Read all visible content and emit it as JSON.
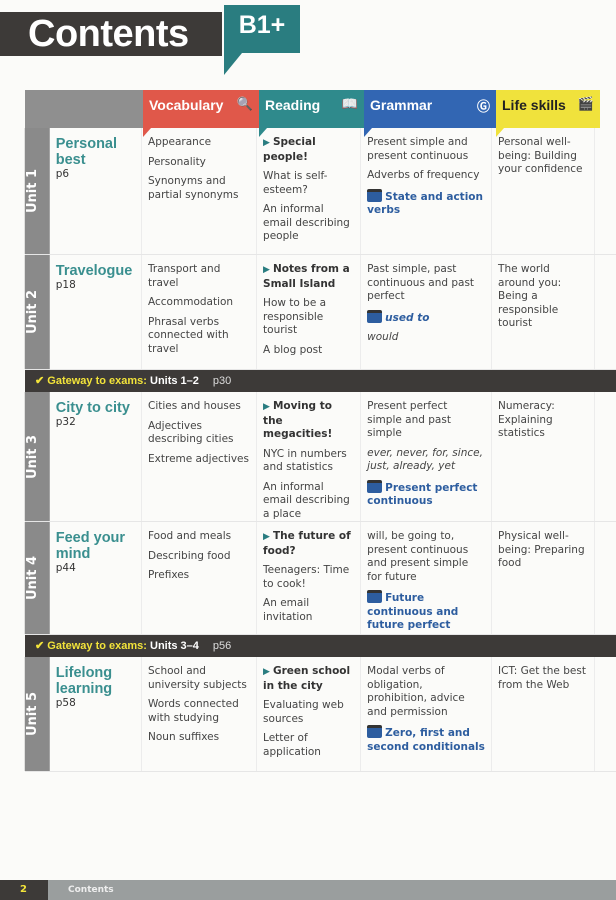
{
  "title": "Contents",
  "level": "B1+",
  "columns": [
    {
      "label": "Vocabulary",
      "color": "#e0584a",
      "icon": "magnifier-icon",
      "glyph": "🔍"
    },
    {
      "label": "Reading",
      "color": "#2f8a8c",
      "icon": "book-icon",
      "glyph": "📖"
    },
    {
      "label": "Grammar",
      "color": "#3266b3",
      "icon": "g-gear-icon",
      "glyph": "Ⓖ"
    },
    {
      "label": "Life skills",
      "color": "#f0e23c",
      "icon": "clapperboard-icon",
      "glyph": "🎬"
    }
  ],
  "sections": [
    {
      "type": "unit",
      "unit": "Unit 1",
      "title": "Personal best",
      "page": "p6",
      "vocab": [
        "Appearance",
        "Personality",
        "Synonyms and partial synonyms"
      ],
      "reading": [
        {
          "t": "Special people!",
          "k": "bold"
        },
        {
          "t": "What is self-esteem?"
        },
        {
          "t": "An informal email describing people"
        }
      ],
      "grammar": [
        {
          "t": "Present simple and present continuous"
        },
        {
          "t": "Adverbs of frequency"
        },
        {
          "t": "State and action verbs",
          "k": "video"
        }
      ],
      "life": [
        "Personal well-being: Building your confidence"
      ]
    },
    {
      "type": "unit",
      "unit": "Unit 2",
      "title": "Travelogue",
      "page": "p18",
      "vocab": [
        "Transport and travel",
        "Accommodation",
        "Phrasal verbs connected with travel"
      ],
      "reading": [
        {
          "t": "Notes from a Small Island",
          "k": "bold"
        },
        {
          "t": "How to be a responsible tourist"
        },
        {
          "t": "A blog post"
        }
      ],
      "grammar": [
        {
          "t": "Past simple, past continuous and past perfect"
        },
        {
          "t": "used to",
          "k": "video-italic"
        },
        {
          "t": "would",
          "k": "italic"
        }
      ],
      "life": [
        "The world around you: Being a responsible tourist"
      ]
    },
    {
      "type": "gateway",
      "label": "Gateway to exams:",
      "units": "Units 1–2",
      "page": "p30"
    },
    {
      "type": "unit",
      "unit": "Unit 3",
      "title": "City to city",
      "page": "p32",
      "vocab": [
        "Cities and houses",
        "Adjectives describing cities",
        "Extreme adjectives"
      ],
      "reading": [
        {
          "t": "Moving to the megacities!",
          "k": "bold"
        },
        {
          "t": "NYC in numbers and statistics"
        },
        {
          "t": "An informal email describing a place"
        }
      ],
      "grammar": [
        {
          "t": "Present perfect simple and past simple"
        },
        {
          "t": "ever, never, for, since, just, already, yet",
          "k": "italic"
        },
        {
          "t": "Present perfect continuous",
          "k": "video"
        }
      ],
      "life": [
        "Numeracy: Explaining statistics"
      ]
    },
    {
      "type": "unit",
      "unit": "Unit 4",
      "title": "Feed your mind",
      "page": "p44",
      "vocab": [
        "Food and meals",
        "Describing food",
        "Prefixes"
      ],
      "reading": [
        {
          "t": "The future of food?",
          "k": "bold"
        },
        {
          "t": "Teenagers: Time to cook!"
        },
        {
          "t": "An email invitation"
        }
      ],
      "grammar": [
        {
          "t": "will, be going to, present continuous and present simple for future"
        },
        {
          "t": "Future continuous and future perfect",
          "k": "video"
        }
      ],
      "life": [
        "Physical well-being: Preparing food"
      ]
    },
    {
      "type": "gateway",
      "label": "Gateway to exams:",
      "units": "Units 3–4",
      "page": "p56"
    },
    {
      "type": "unit",
      "unit": "Unit 5",
      "title": "Lifelong learning",
      "page": "p58",
      "vocab": [
        "School and university subjects",
        "Words connected with studying",
        "Noun suffixes"
      ],
      "reading": [
        {
          "t": "Green school in the city",
          "k": "bold"
        },
        {
          "t": "Evaluating web sources"
        },
        {
          "t": "Letter of application"
        }
      ],
      "grammar": [
        {
          "t": "Modal verbs of obligation, prohibition, advice and permission"
        },
        {
          "t": "Zero, first and second conditionals",
          "k": "video"
        }
      ],
      "life": [
        "ICT: Get the best from the Web"
      ]
    }
  ],
  "footer": {
    "page_number": "2",
    "label": "Contents"
  }
}
